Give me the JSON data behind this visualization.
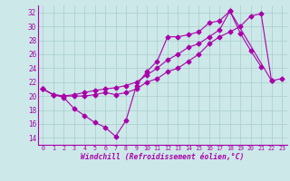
{
  "bg_color": "#cce8e8",
  "line_color": "#aa00aa",
  "grid_color": "#aacccc",
  "xlabel": "Windchill (Refroidissement éolien,°C)",
  "yticks": [
    14,
    16,
    18,
    20,
    22,
    24,
    26,
    28,
    30,
    32
  ],
  "xticks": [
    0,
    1,
    2,
    3,
    4,
    5,
    6,
    7,
    8,
    9,
    10,
    11,
    12,
    13,
    14,
    15,
    16,
    17,
    18,
    19,
    20,
    21,
    22,
    23
  ],
  "xlim": [
    -0.5,
    23.5
  ],
  "ylim": [
    13.0,
    33.0
  ],
  "line1_x": [
    0,
    1,
    2,
    3,
    4,
    5,
    6,
    7,
    8,
    9,
    10,
    11,
    12,
    13,
    14,
    15,
    16,
    17,
    18,
    19,
    20,
    21
  ],
  "line1_y": [
    21,
    20.2,
    19.8,
    18.2,
    17.2,
    16.2,
    15.5,
    14.2,
    16.5,
    21.5,
    23.5,
    25.0,
    28.5,
    28.5,
    28.8,
    29.2,
    30.5,
    30.8,
    32.2,
    29.0,
    26.5,
    24.2
  ],
  "line2_x": [
    0,
    1,
    2,
    3,
    4,
    5,
    6,
    7,
    8,
    9,
    10,
    11,
    12,
    13,
    14,
    15,
    16,
    17,
    18,
    19,
    20,
    21,
    22
  ],
  "line2_y": [
    21,
    20.2,
    20.0,
    20.0,
    20.0,
    20.2,
    20.5,
    20.2,
    20.5,
    21.0,
    22.0,
    22.5,
    23.5,
    24.0,
    25.0,
    26.0,
    27.5,
    28.5,
    29.2,
    30.0,
    31.5,
    31.8,
    22.2
  ],
  "line3_x": [
    0,
    1,
    2,
    3,
    4,
    5,
    6,
    7,
    8,
    9,
    10,
    11,
    12,
    13,
    14,
    15,
    16,
    17,
    18,
    22,
    23
  ],
  "line3_y": [
    21,
    20.2,
    20.0,
    20.2,
    20.5,
    20.8,
    21.0,
    21.2,
    21.5,
    22.0,
    23.0,
    24.0,
    25.2,
    26.0,
    27.0,
    27.5,
    28.5,
    29.5,
    32.2,
    22.2,
    22.5
  ]
}
